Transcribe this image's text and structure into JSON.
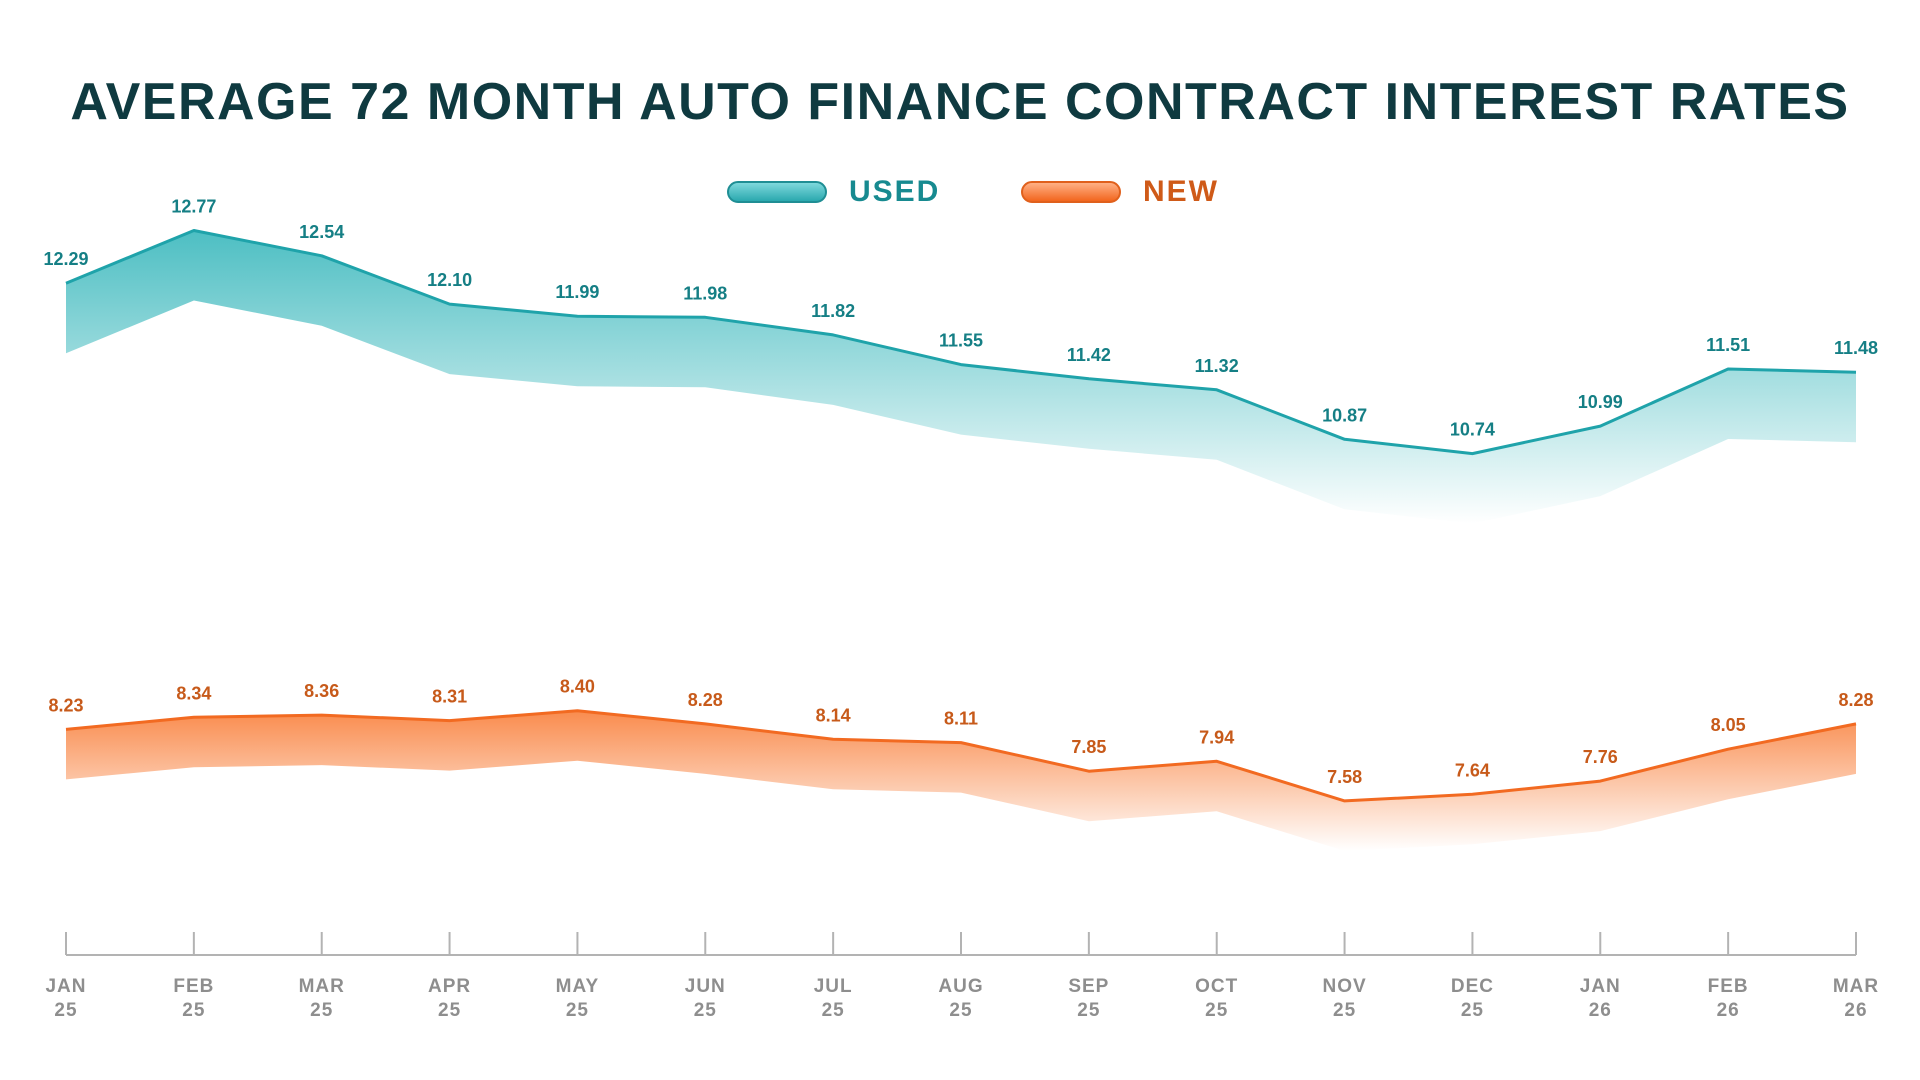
{
  "chart_data": {
    "type": "line",
    "title": "AVERAGE 72 MONTH AUTO FINANCE CONTRACT INTEREST RATES",
    "categories": [
      [
        "JAN",
        "25"
      ],
      [
        "FEB",
        "25"
      ],
      [
        "MAR",
        "25"
      ],
      [
        "APR",
        "25"
      ],
      [
        "MAY",
        "25"
      ],
      [
        "JUN",
        "25"
      ],
      [
        "JUL",
        "25"
      ],
      [
        "AUG",
        "25"
      ],
      [
        "SEP",
        "25"
      ],
      [
        "OCT",
        "25"
      ],
      [
        "NOV",
        "25"
      ],
      [
        "DEC",
        "25"
      ],
      [
        "JAN",
        "26"
      ],
      [
        "FEB",
        "26"
      ],
      [
        "MAR",
        "26"
      ]
    ],
    "series": [
      {
        "name": "USED",
        "color": "#1fa3aa",
        "values": [
          12.29,
          12.77,
          12.54,
          12.1,
          11.99,
          11.98,
          11.82,
          11.55,
          11.42,
          11.32,
          10.87,
          10.74,
          10.99,
          11.51,
          11.48
        ],
        "labels": [
          "12.29",
          "12.77",
          "12.54",
          "12.10",
          "11.99",
          "11.98",
          "11.82",
          "11.55",
          "11.42",
          "11.32",
          "10.87",
          "10.74",
          "10.99",
          "11.51",
          "11.48"
        ]
      },
      {
        "name": "NEW",
        "color": "#f26a21",
        "values": [
          8.23,
          8.34,
          8.36,
          8.31,
          8.4,
          8.28,
          8.14,
          8.11,
          7.85,
          7.94,
          7.58,
          7.64,
          7.76,
          8.05,
          8.28
        ],
        "labels": [
          "8.23",
          "8.34",
          "8.36",
          "8.31",
          "8.40",
          "8.28",
          "8.14",
          "8.11",
          "7.85",
          "7.94",
          "7.58",
          "7.64",
          "7.76",
          "8.05",
          "8.28"
        ]
      }
    ],
    "grid": false,
    "legend": "top-center",
    "data_labels": true
  }
}
